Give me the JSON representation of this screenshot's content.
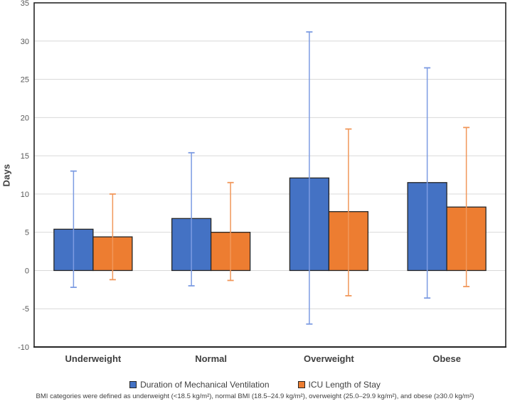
{
  "figure": {
    "footnote": "BMI categories were defined as underweight (<18.5 kg/m²), normal BMI (18.5–24.9 kg/m²), overweight (25.0–29.9 kg/m²), and obese (≥30.0 kg/m²)"
  },
  "chart_data": {
    "type": "bar",
    "title": "",
    "xlabel": "",
    "ylabel": "Days",
    "ylim": [
      -10,
      35
    ],
    "ytick_step": 5,
    "grid": true,
    "legend_position": "bottom",
    "categories": [
      "Underweight",
      "Normal",
      "Overweight",
      "Obese"
    ],
    "series": [
      {
        "name": "Duration of Mechanical Ventilation",
        "color": "#4472C4",
        "error_color": "#7C9BE2",
        "values": [
          5.4,
          6.8,
          12.1,
          11.5
        ],
        "error_high": [
          13.0,
          15.4,
          31.2,
          26.5
        ],
        "error_low": [
          -2.2,
          -2.0,
          -7.0,
          -3.6
        ]
      },
      {
        "name": "ICU Length of Stay",
        "color": "#ED7D31",
        "error_color": "#F1975A",
        "values": [
          4.4,
          5.0,
          7.7,
          8.3
        ],
        "error_high": [
          10.0,
          11.5,
          18.5,
          18.7
        ],
        "error_low": [
          -1.2,
          -1.3,
          -3.3,
          -2.1
        ]
      }
    ],
    "colors": {
      "grid": "#D9D9D9",
      "frame": "#262626",
      "bar_outline": "#262626",
      "tick_text": "#595959",
      "category_text": "#3F3F3F",
      "background": "#FFFFFF"
    }
  }
}
